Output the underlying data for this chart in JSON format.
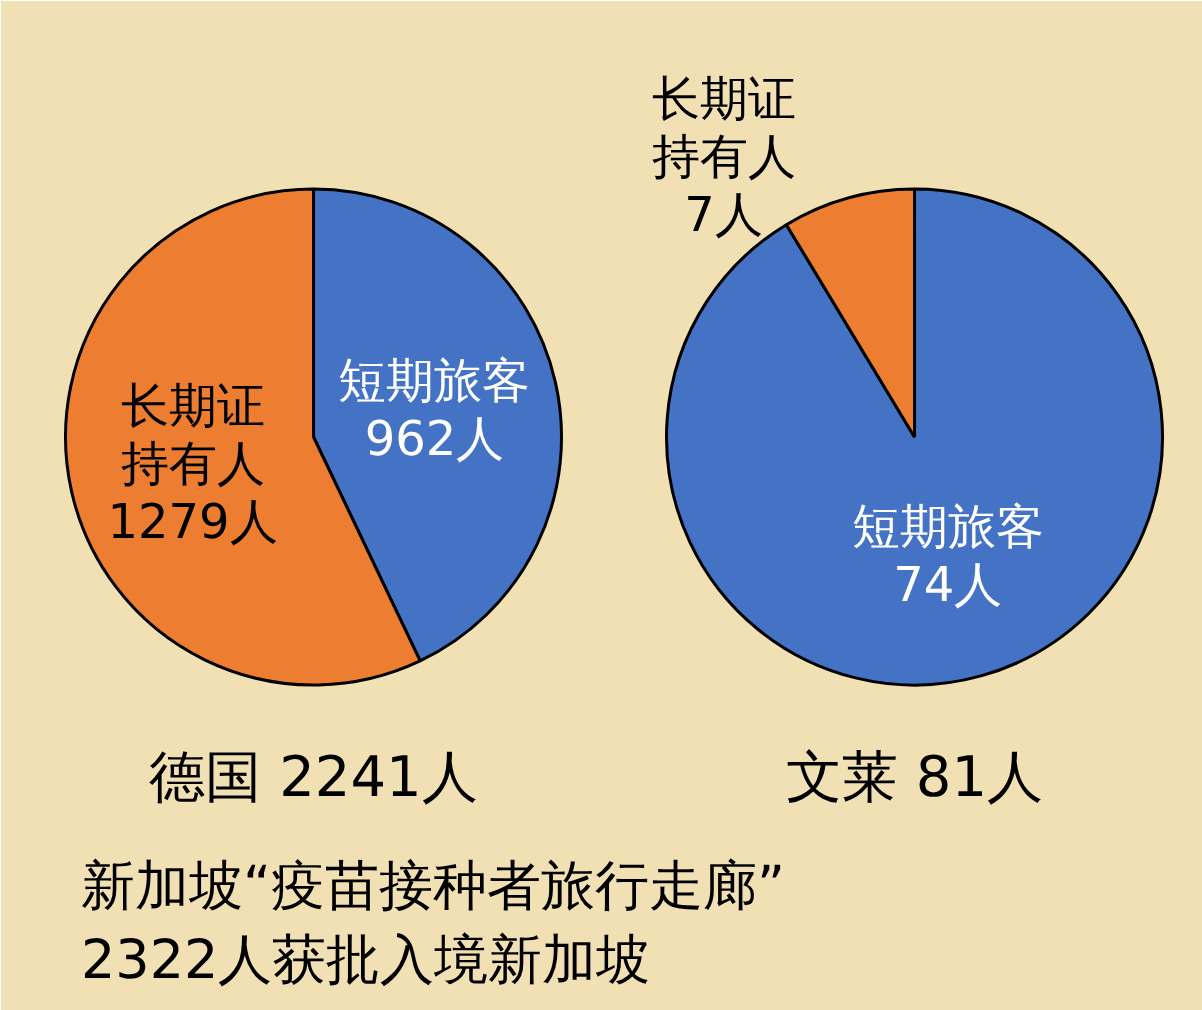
{
  "chart_data": [
    {
      "type": "pie",
      "title": "德国 2241人",
      "categories": [
        "短期旅客",
        "长期证持有人"
      ],
      "values": [
        962,
        1279
      ],
      "colors": [
        "#4472c4",
        "#ed7d31"
      ],
      "value_labels": [
        "962人",
        "1279人"
      ],
      "annotations": [
        "新加坡“疫苗接种者旅行走廊”",
        "2322人获批入境新加坡"
      ]
    },
    {
      "type": "pie",
      "title": "文莱 81人",
      "categories": [
        "短期旅客",
        "长期证持有人"
      ],
      "values": [
        74,
        7
      ],
      "colors": [
        "#4472c4",
        "#ed7d31"
      ],
      "value_labels": [
        "74人",
        "7人"
      ]
    }
  ]
}
